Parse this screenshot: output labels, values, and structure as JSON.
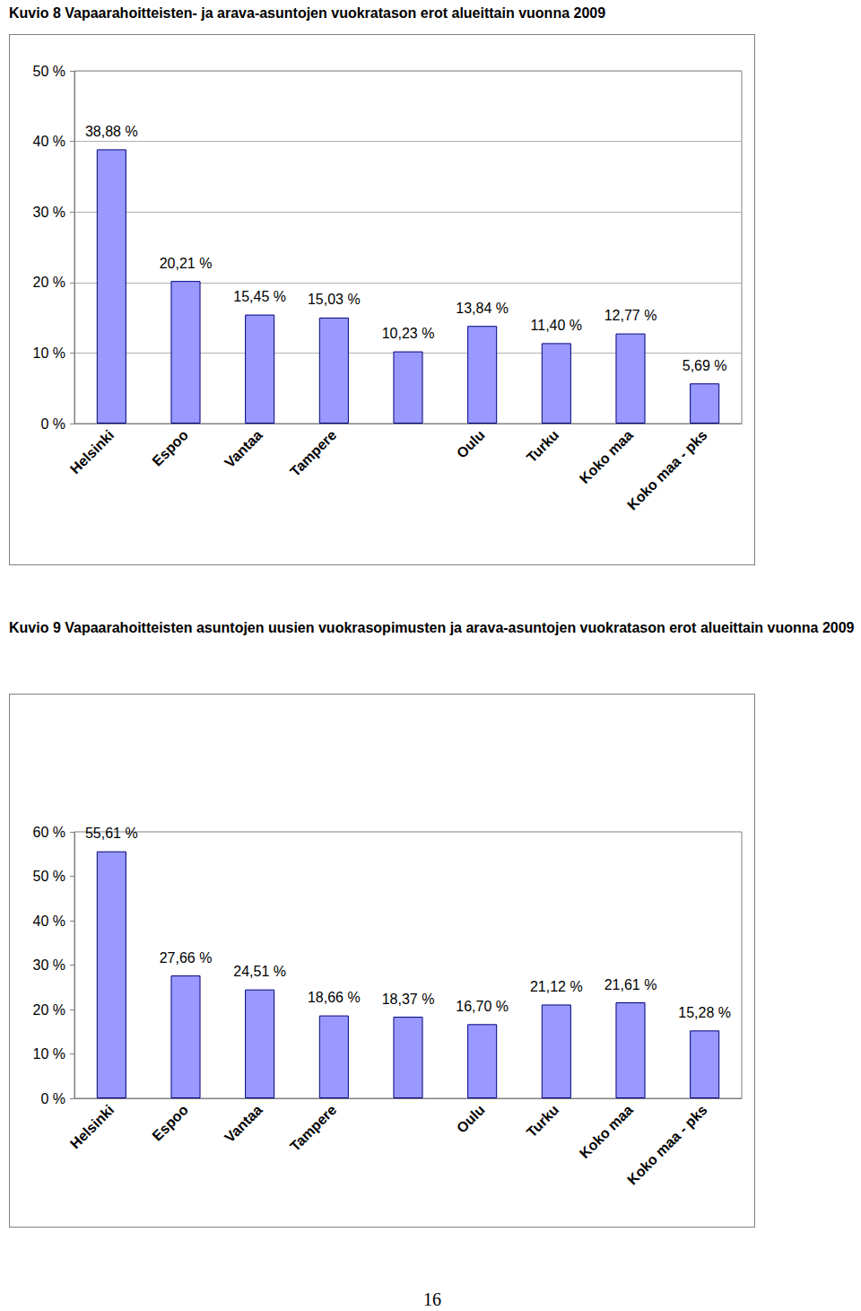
{
  "chart_data": [
    {
      "type": "bar",
      "title": "Kuvio 8 Vapaarahoitteisten- ja arava-asuntojen vuokratason erot alueittain vuonna 2009",
      "categories": [
        "Helsinki",
        "Espoo",
        "Vantaa",
        "Tampere",
        null,
        "Oulu",
        "Turku",
        "Koko maa",
        "Koko maa - pks"
      ],
      "values": [
        38.88,
        20.21,
        15.45,
        15.03,
        10.23,
        13.84,
        11.4,
        12.77,
        5.69
      ],
      "value_labels": [
        "38,88 %",
        "20,21 %",
        "15,45 %",
        "15,03 %",
        "10,23 %",
        "13,84 %",
        "11,40 %",
        "12,77 %",
        "5,69 %"
      ],
      "color": "#9999ff",
      "ylim": [
        0,
        50
      ],
      "yticks": [
        {
          "value": 0,
          "label": "0 %"
        },
        {
          "value": 10,
          "label": "10 %"
        },
        {
          "value": 20,
          "label": "20 %"
        },
        {
          "value": 30,
          "label": "30 %"
        },
        {
          "value": 40,
          "label": "40 %"
        },
        {
          "value": 50,
          "label": "50 %"
        }
      ],
      "grid": true,
      "data_labels": true
    },
    {
      "type": "bar",
      "title": "Kuvio 9 Vapaarahoitteisten asuntojen uusien vuokrasopimusten ja arava-asuntojen vuokratason erot alueittain vuonna 2009",
      "categories": [
        "Helsinki",
        "Espoo",
        "Vantaa",
        "Tampere",
        null,
        "Oulu",
        "Turku",
        "Koko maa",
        "Koko maa - pks"
      ],
      "values": [
        55.61,
        27.66,
        24.51,
        18.66,
        18.37,
        16.7,
        21.12,
        21.61,
        15.28
      ],
      "value_labels": [
        "55,61 %",
        "27,66 %",
        "24,51 %",
        "18,66 %",
        "18,37 %",
        "16,70 %",
        "21,12 %",
        "21,61 %",
        "15,28 %"
      ],
      "color": "#9999ff",
      "ylim": [
        0,
        60
      ],
      "yticks": [
        {
          "value": 0,
          "label": "0 %"
        },
        {
          "value": 10,
          "label": "10 %"
        },
        {
          "value": 20,
          "label": "20 %"
        },
        {
          "value": 30,
          "label": "30 %"
        },
        {
          "value": 40,
          "label": "40 %"
        },
        {
          "value": 50,
          "label": "50 %"
        },
        {
          "value": 60,
          "label": "60 %"
        }
      ],
      "grid": false,
      "data_labels": true
    }
  ],
  "footer": {
    "page_number": "16"
  }
}
